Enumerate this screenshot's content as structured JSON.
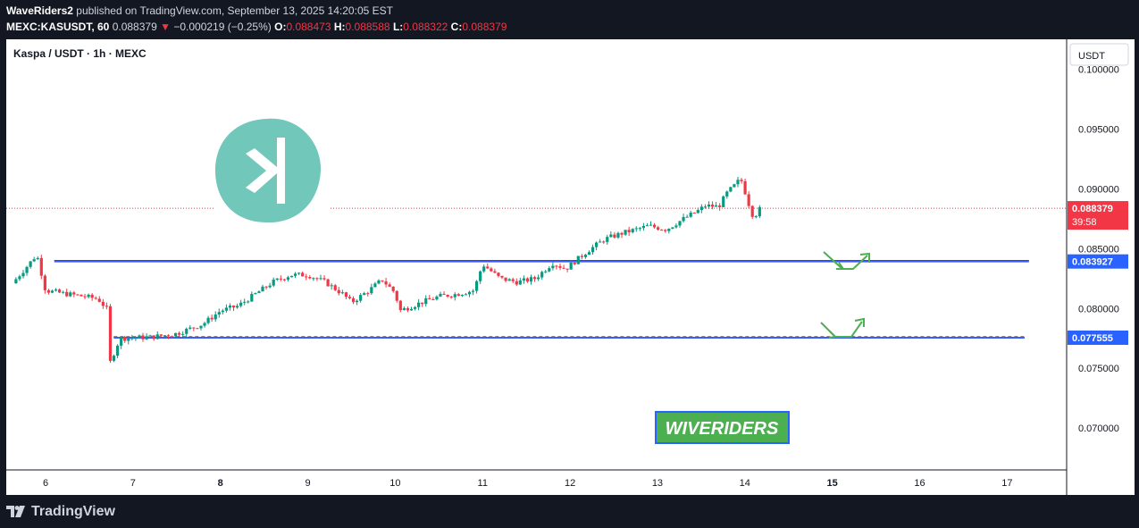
{
  "header": {
    "publisher": "WaveRiders2",
    "published_text": "published on TradingView.com, September 13, 2025 14:20:05 EST",
    "symbol": "MEXC:KASUSDT, 60",
    "last": "0.088379",
    "change_arrow": "▼",
    "change": "−0.000219 (−0.25%)",
    "o_label": "O:",
    "o_value": "0.088473",
    "h_label": "H:",
    "h_value": "0.088588",
    "l_label": "L:",
    "l_value": "0.088322",
    "c_label": "C:",
    "c_value": "0.088379"
  },
  "chart_title": "Kaspa / USDT · 1h · MEXC",
  "currency_button": "USDT",
  "brand_label": "WIVERIDERS",
  "footer_brand": "TradingView",
  "colors": {
    "up": "#089981",
    "down": "#f23645",
    "level_line": "#3d5afe",
    "price_tag": "#f23645",
    "level_tag": "#2962ff",
    "kaspa_logo": "#70c7ba",
    "wiveriders_bg": "#4caf50"
  },
  "icons": [
    "kaspa-logo-icon",
    "tradingview-logo-icon",
    "bounce-arrow-icon"
  ],
  "chart_data": {
    "type": "candlestick",
    "ylim": [
      0.0665,
      0.1025
    ],
    "y_ticks": [
      "0.100000",
      "0.095000",
      "0.090000",
      "0.085000",
      "0.080000",
      "0.075000",
      "0.070000"
    ],
    "y_tick_values": [
      0.1,
      0.095,
      0.09,
      0.085,
      0.08,
      0.075,
      0.07
    ],
    "x_ticks": [
      "6",
      "7",
      "8",
      "9",
      "10",
      "11",
      "12",
      "13",
      "14",
      "15",
      "16",
      "17"
    ],
    "x_tick_days": [
      6,
      7,
      8,
      9,
      10,
      11,
      12,
      13,
      14,
      15,
      16,
      17
    ],
    "x_tick_bold": [
      "8",
      "15"
    ],
    "current_price": {
      "label": "0.088379",
      "value": 0.088379,
      "countdown": "39:58"
    },
    "levels": [
      {
        "label": "0.083927",
        "value": 0.083927,
        "start_day": 6.1,
        "end_day": 17.25
      },
      {
        "label": "0.077555",
        "value": 0.077555,
        "start_day": 6.78,
        "end_day": 17.2
      }
    ],
    "price_path": [
      [
        5.62,
        0.0821
      ],
      [
        5.75,
        0.0832
      ],
      [
        5.9,
        0.0845
      ],
      [
        6.0,
        0.0815
      ],
      [
        6.25,
        0.0812
      ],
      [
        6.45,
        0.081
      ],
      [
        6.6,
        0.0808
      ],
      [
        6.72,
        0.0798
      ],
      [
        6.74,
        0.0755
      ],
      [
        6.85,
        0.0775
      ],
      [
        7.2,
        0.0776
      ],
      [
        7.5,
        0.0779
      ],
      [
        7.8,
        0.0787
      ],
      [
        8.0,
        0.0798
      ],
      [
        8.2,
        0.0802
      ],
      [
        8.4,
        0.0812
      ],
      [
        8.6,
        0.0822
      ],
      [
        8.8,
        0.0828
      ],
      [
        9.0,
        0.0828
      ],
      [
        9.2,
        0.0822
      ],
      [
        9.4,
        0.0812
      ],
      [
        9.5,
        0.0805
      ],
      [
        9.7,
        0.0815
      ],
      [
        9.85,
        0.0824
      ],
      [
        10.0,
        0.0813
      ],
      [
        10.05,
        0.0798
      ],
      [
        10.3,
        0.0805
      ],
      [
        10.5,
        0.081
      ],
      [
        10.7,
        0.0812
      ],
      [
        10.9,
        0.0815
      ],
      [
        11.0,
        0.0837
      ],
      [
        11.2,
        0.0825
      ],
      [
        11.4,
        0.0822
      ],
      [
        11.6,
        0.0825
      ],
      [
        11.8,
        0.0838
      ],
      [
        11.95,
        0.0833
      ],
      [
        12.1,
        0.0842
      ],
      [
        12.2,
        0.0848
      ],
      [
        12.4,
        0.0858
      ],
      [
        12.6,
        0.0863
      ],
      [
        12.75,
        0.0866
      ],
      [
        12.9,
        0.0869
      ],
      [
        13.1,
        0.0866
      ],
      [
        13.3,
        0.0875
      ],
      [
        13.45,
        0.0881
      ],
      [
        13.55,
        0.0886
      ],
      [
        13.7,
        0.0885
      ],
      [
        13.8,
        0.0897
      ],
      [
        13.9,
        0.0904
      ],
      [
        13.95,
        0.0909
      ],
      [
        14.0,
        0.0898
      ],
      [
        14.05,
        0.0886
      ],
      [
        14.1,
        0.0876
      ],
      [
        14.17,
        0.0883
      ]
    ]
  }
}
